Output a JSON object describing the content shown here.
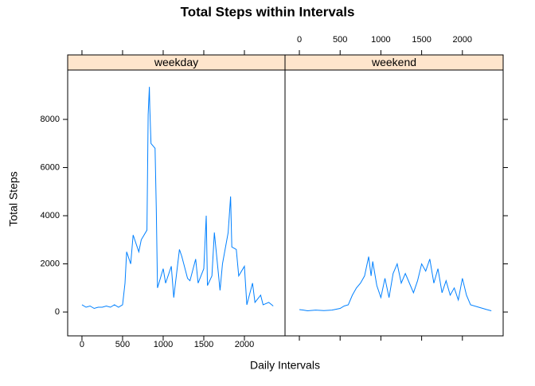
{
  "chart_data": {
    "type": "line",
    "title": "Total Steps within Intervals",
    "x_label": "Daily Intervals",
    "y_label": "Total Steps",
    "xlim": [
      -176,
      2500
    ],
    "ylim": [
      -990,
      10050
    ],
    "xticks": [
      0,
      500,
      1000,
      1500,
      2000
    ],
    "yticks": [
      0,
      2000,
      4000,
      6000,
      8000
    ],
    "strip_color": "#ffe5cc",
    "series": [
      {
        "name": "weekday",
        "color": "#0080ff",
        "x": [
          0,
          50,
          100,
          150,
          200,
          250,
          300,
          350,
          400,
          450,
          500,
          530,
          550,
          600,
          630,
          700,
          730,
          800,
          815,
          830,
          835,
          850,
          900,
          915,
          930,
          1000,
          1030,
          1100,
          1130,
          1200,
          1230,
          1300,
          1330,
          1400,
          1430,
          1500,
          1530,
          1545,
          1600,
          1630,
          1700,
          1730,
          1800,
          1830,
          1845,
          1900,
          1930,
          2000,
          2030,
          2100,
          2130,
          2200,
          2230,
          2300,
          2355
        ],
        "values": [
          300,
          200,
          250,
          150,
          200,
          200,
          250,
          200,
          300,
          200,
          300,
          1200,
          2500,
          2000,
          3200,
          2500,
          3000,
          3400,
          8200,
          9350,
          8500,
          7000,
          6800,
          4300,
          1000,
          1800,
          1200,
          1900,
          600,
          2600,
          2300,
          1400,
          1300,
          2200,
          1200,
          1800,
          4000,
          1100,
          1500,
          3300,
          900,
          2000,
          3300,
          4800,
          2700,
          2600,
          1500,
          1900,
          300,
          1200,
          400,
          700,
          300,
          400,
          250
        ]
      },
      {
        "name": "weekend",
        "color": "#0080ff",
        "x": [
          0,
          50,
          100,
          200,
          300,
          400,
          500,
          550,
          600,
          650,
          700,
          750,
          800,
          850,
          880,
          900,
          950,
          1000,
          1050,
          1100,
          1150,
          1200,
          1250,
          1300,
          1350,
          1400,
          1450,
          1500,
          1550,
          1600,
          1650,
          1700,
          1750,
          1800,
          1850,
          1900,
          1950,
          2000,
          2050,
          2100,
          2200,
          2300,
          2355
        ],
        "values": [
          100,
          80,
          50,
          80,
          60,
          80,
          150,
          250,
          300,
          700,
          1000,
          1200,
          1500,
          2300,
          1500,
          2100,
          1100,
          600,
          1400,
          600,
          1600,
          2000,
          1200,
          1600,
          1200,
          800,
          1300,
          2000,
          1700,
          2200,
          1200,
          1800,
          800,
          1300,
          700,
          1000,
          500,
          1400,
          700,
          300,
          200,
          100,
          50
        ]
      }
    ]
  }
}
